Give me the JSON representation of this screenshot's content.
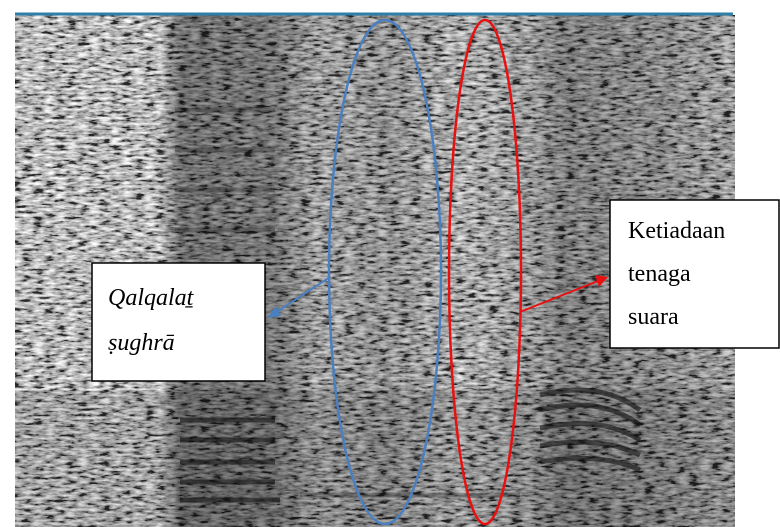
{
  "labels": [
    {
      "lines": [
        "Qalqalaṯ",
        "ṣughrā"
      ]
    },
    {
      "lines": [
        "Ketiadaan",
        "tenaga",
        "suara"
      ]
    }
  ]
}
